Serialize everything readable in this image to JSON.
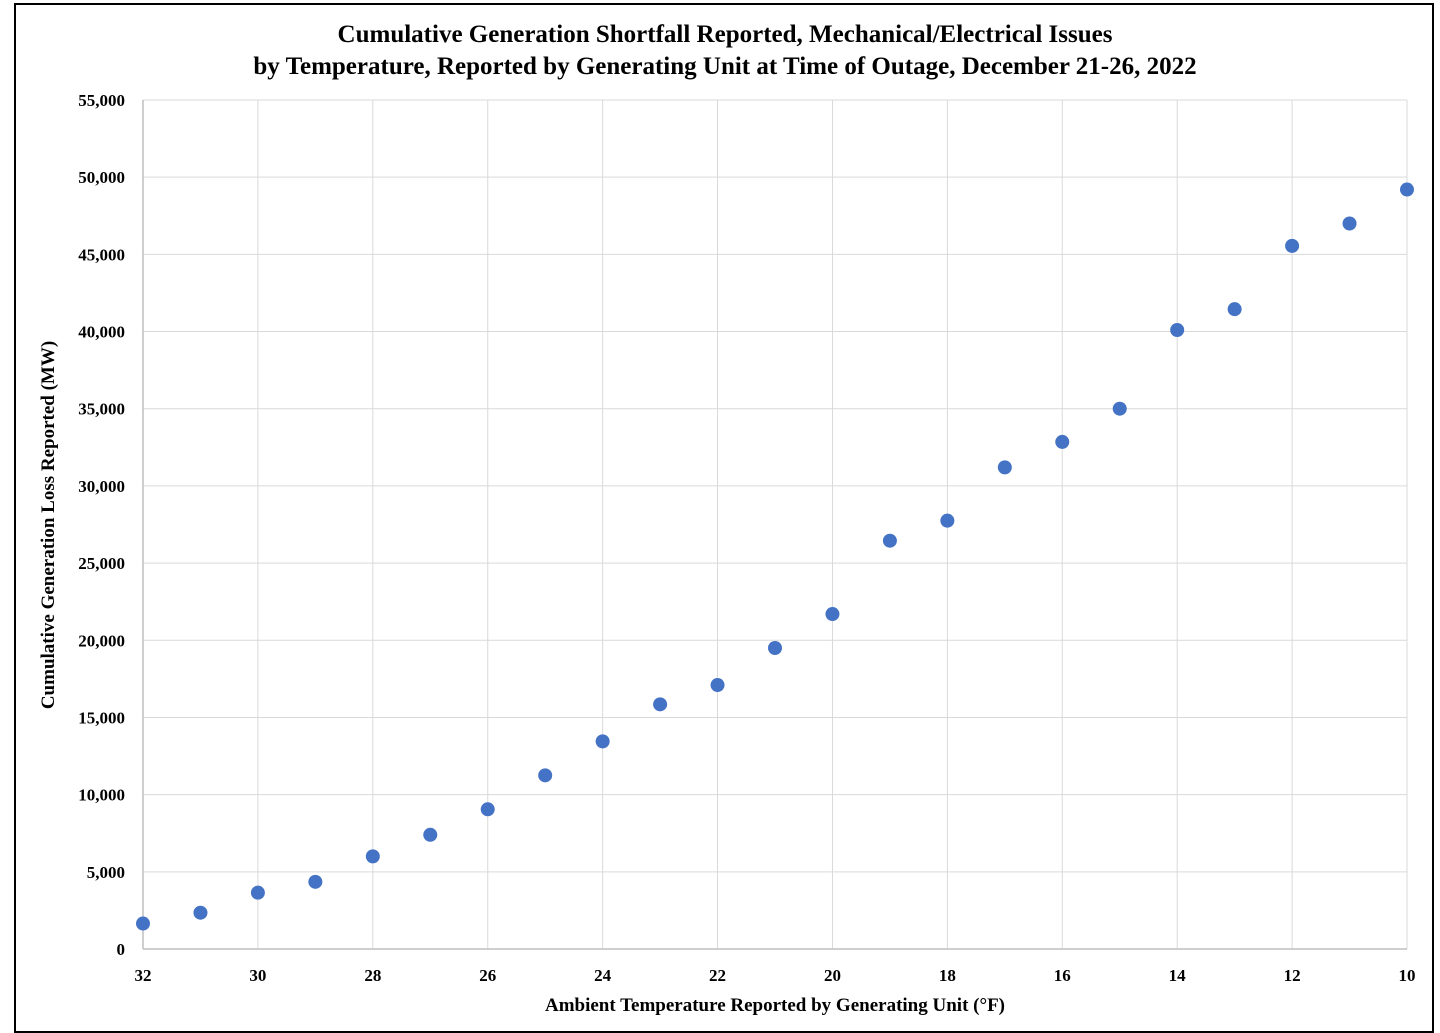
{
  "chart_data": {
    "type": "scatter",
    "title": "Cumulative Generation Shortfall Reported, Mechanical/Electrical Issues",
    "subtitle": "by Temperature, Reported by Generating Unit at Time of Outage, December 21-26, 2022",
    "xlabel": "Ambient Temperature Reported by Generating Unit (°F)",
    "ylabel": "Cumulative Generation Loss Reported (MW)",
    "x_reversed": true,
    "xlim": [
      32,
      10
    ],
    "ylim": [
      0,
      55000
    ],
    "grid": true,
    "legend": "none",
    "marker_color": "#4472C4",
    "x_ticks": [
      32,
      30,
      28,
      26,
      24,
      22,
      20,
      18,
      16,
      14,
      12,
      10
    ],
    "y_ticks": [
      0,
      5000,
      10000,
      15000,
      20000,
      25000,
      30000,
      35000,
      40000,
      45000,
      50000,
      55000
    ],
    "x_tick_labels": [
      "32",
      "30",
      "28",
      "26",
      "24",
      "22",
      "20",
      "18",
      "16",
      "14",
      "12",
      "10"
    ],
    "y_tick_labels": [
      "0",
      "5,000",
      "10,000",
      "15,000",
      "20,000",
      "25,000",
      "30,000",
      "35,000",
      "40,000",
      "45,000",
      "50,000",
      "55,000"
    ],
    "series": [
      {
        "x": [
          32,
          31,
          30,
          29,
          28,
          27,
          26,
          25,
          24,
          23,
          22,
          21,
          20,
          19,
          18,
          17,
          16,
          15,
          14,
          13,
          12,
          11,
          10
        ],
        "y": [
          1650,
          2350,
          3650,
          4350,
          6000,
          7400,
          9050,
          11250,
          13450,
          15850,
          17100,
          19500,
          21700,
          26450,
          27750,
          31200,
          32850,
          35000,
          40100,
          41450,
          45550,
          47000,
          49200
        ]
      }
    ]
  }
}
